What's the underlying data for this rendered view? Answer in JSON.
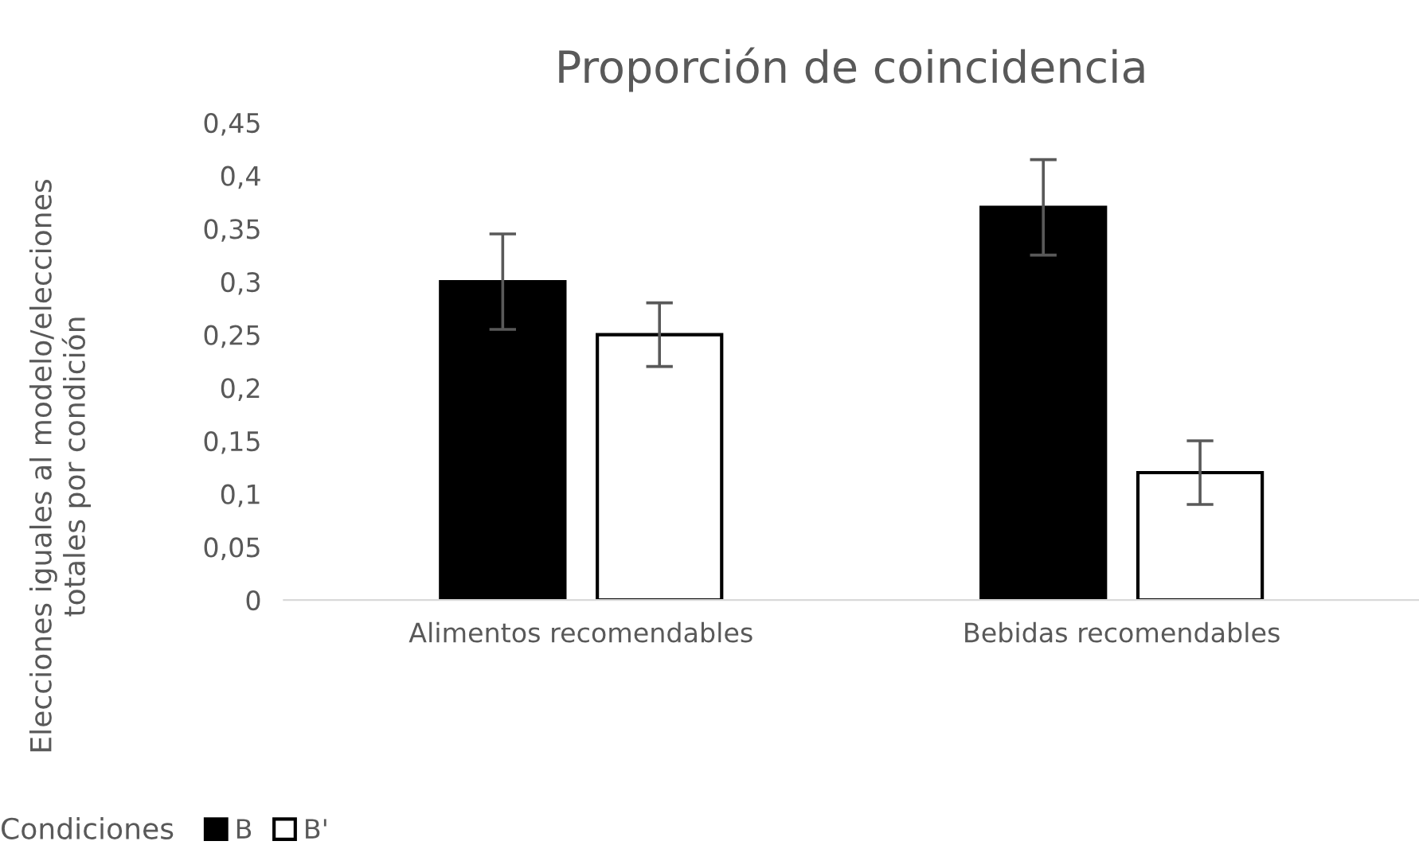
{
  "chart_data": {
    "type": "bar",
    "title": "Proporción de coincidencia",
    "ylabel": "Elecciones iguales al modelo/elecciones\ntotales por condición",
    "legend_title": "Condiciones",
    "legend": "bottom",
    "categories": [
      "Alimentos recomendables",
      "Bebidas recomendables"
    ],
    "series": [
      {
        "name": "B",
        "color": "#000000",
        "values": [
          0.3,
          0.37
        ],
        "errors": [
          0.045,
          0.045
        ]
      },
      {
        "name": "B'",
        "color": "#ffffff",
        "values": [
          0.25,
          0.12
        ],
        "errors": [
          0.03,
          0.03
        ]
      }
    ],
    "ylim": [
      0,
      0.45
    ],
    "yticks": [
      0,
      {
        "value": 0.05,
        "label": "0,05"
      },
      {
        "value": 0.1,
        "label": "0,1"
      },
      {
        "value": 0.15,
        "label": "0,15"
      },
      {
        "value": 0.2,
        "label": "0,2"
      },
      {
        "value": 0.25,
        "label": "0,25"
      },
      {
        "value": 0.3,
        "label": "0,3"
      },
      {
        "value": 0.35,
        "label": "0,35"
      },
      {
        "value": 0.4,
        "label": "0,4"
      },
      {
        "value": 0.45,
        "label": "0,45"
      }
    ],
    "grid": false
  }
}
